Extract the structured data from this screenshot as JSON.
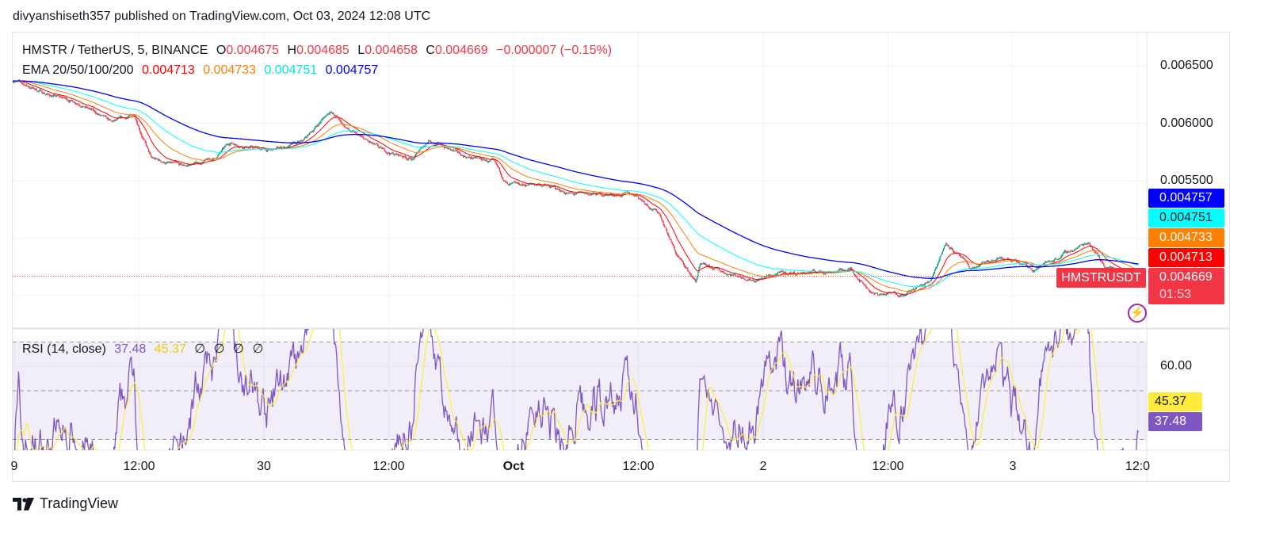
{
  "published": "divyanshiseth357 published on TradingView.com, Oct 03, 2024 12:08 UTC",
  "legend": {
    "symbol": "HMSTR / TetherUS, 5, BINANCE",
    "o_label": "O",
    "o": "0.004675",
    "h_label": "H",
    "h": "0.004685",
    "l_label": "L",
    "l": "0.004658",
    "c_label": "C",
    "c": "0.004669",
    "change": "−0.000007 (−0.15%)",
    "ema_label": "EMA 20/50/100/200",
    "ema20": "0.004713",
    "ema50": "0.004733",
    "ema100": "0.004751",
    "ema200": "0.004757"
  },
  "rsi_legend": {
    "label": "RSI (14, close)",
    "rsi": "37.48",
    "ma": "45.37",
    "na_symbols": [
      "∅",
      "∅",
      "∅",
      "∅"
    ]
  },
  "price_tags": {
    "ema200": "0.004757",
    "ema100": "0.004751",
    "ema50": "0.004733",
    "ema20": "0.004713",
    "last": "0.004669",
    "countdown": "01:53",
    "symbol_tag": "HMSTRUSDT"
  },
  "rsi_tags": {
    "ma": "45.37",
    "rsi": "37.48"
  },
  "footer": {
    "brand": "TradingView"
  },
  "colors": {
    "up": "#089981",
    "down": "#f23645",
    "ema20": "#ff0000",
    "ema50": "#ff8000",
    "ema100": "#00ffff",
    "ema200": "#0000ff",
    "rsi": "#7e57c2",
    "rsi_ma": "#ffeb3b",
    "last": "#f23645"
  },
  "chart_data": [
    {
      "type": "candlestick",
      "title": "HMSTR / TetherUS, 5, BINANCE",
      "interval": "5m",
      "ylim": [
        0.00425,
        0.00655
      ],
      "y_ticks": [
        "0.006500",
        "0.006000",
        "0.005500"
      ],
      "y_tick_values": [
        0.0065,
        0.006,
        0.0055
      ],
      "x_ticks": [
        {
          "label": "9",
          "time": "2024-09-29 00:00"
        },
        {
          "label": "12:00",
          "time": "2024-09-29 12:00"
        },
        {
          "label": "30",
          "time": "2024-09-30 00:00"
        },
        {
          "label": "12:00",
          "time": "2024-09-30 12:00"
        },
        {
          "label": "Oct",
          "time": "2024-10-01 00:00",
          "bold": true
        },
        {
          "label": "12:00",
          "time": "2024-10-01 12:00"
        },
        {
          "label": "2",
          "time": "2024-10-02 00:00"
        },
        {
          "label": "12:00",
          "time": "2024-10-02 12:00"
        },
        {
          "label": "3",
          "time": "2024-10-03 00:00"
        },
        {
          "label": "12:0",
          "time": "2024-10-03 12:00"
        }
      ],
      "approx_close_path": [
        [
          "2024-09-28 23:45",
          0.00638
        ],
        [
          "2024-09-29 03:15",
          0.00625
        ],
        [
          "2024-09-29 06:15",
          0.00618
        ],
        [
          "2024-09-29 09:20",
          0.006
        ],
        [
          "2024-09-29 11:35",
          0.00607
        ],
        [
          "2024-09-29 13:10",
          0.00569
        ],
        [
          "2024-09-29 16:10",
          0.00562
        ],
        [
          "2024-09-29 19:15",
          0.00569
        ],
        [
          "2024-09-29 20:45",
          0.00583
        ],
        [
          "2024-09-30 00:35",
          0.00576
        ],
        [
          "2024-09-30 03:40",
          0.00583
        ],
        [
          "2024-09-30 06:20",
          0.00611
        ],
        [
          "2024-09-30 08:15",
          0.00593
        ],
        [
          "2024-09-30 11:20",
          0.00576
        ],
        [
          "2024-09-30 14:20",
          0.00569
        ],
        [
          "2024-09-30 15:55",
          0.00586
        ],
        [
          "2024-09-30 18:55",
          0.00572
        ],
        [
          "2024-09-30 22:00",
          0.00566
        ],
        [
          "2024-09-30 23:30",
          0.00545
        ],
        [
          "2024-10-01 02:35",
          0.00547
        ],
        [
          "2024-10-01 05:40",
          0.00538
        ],
        [
          "2024-10-01 08:40",
          0.00538
        ],
        [
          "2024-10-01 11:45",
          0.00538
        ],
        [
          "2024-10-01 14:05",
          0.00521
        ],
        [
          "2024-10-01 15:35",
          0.00487
        ],
        [
          "2024-10-01 17:30",
          0.00462
        ],
        [
          "2024-10-01 17:55",
          0.00476
        ],
        [
          "2024-10-01 20:55",
          0.00469
        ],
        [
          "2024-10-01 23:15",
          0.00464
        ],
        [
          "2024-10-02 01:30",
          0.00469
        ],
        [
          "2024-10-02 06:05",
          0.00471
        ],
        [
          "2024-10-02 08:25",
          0.00473
        ],
        [
          "2024-10-02 10:40",
          0.00451
        ],
        [
          "2024-10-02 13:45",
          0.00452
        ],
        [
          "2024-10-02 16:00",
          0.00462
        ],
        [
          "2024-10-02 17:35",
          0.00497
        ],
        [
          "2024-10-02 19:55",
          0.00473
        ],
        [
          "2024-10-02 22:55",
          0.00483
        ],
        [
          "2024-10-03 01:55",
          0.00473
        ],
        [
          "2024-10-03 04:15",
          0.00483
        ],
        [
          "2024-10-03 07:20",
          0.00497
        ],
        [
          "2024-10-03 08:50",
          0.00476
        ],
        [
          "2024-10-03 12:05",
          0.004669
        ]
      ],
      "series": [
        {
          "name": "EMA 20",
          "period": 20,
          "last": 0.004713
        },
        {
          "name": "EMA 50",
          "period": 50,
          "last": 0.004733
        },
        {
          "name": "EMA 100",
          "period": 100,
          "last": 0.004751
        },
        {
          "name": "EMA 200",
          "period": 200,
          "last": 0.004757
        }
      ],
      "last_price": 0.004669
    },
    {
      "type": "line",
      "title": "RSI (14, close)",
      "ylim": [
        25.6,
        75.4
      ],
      "bands": [
        70,
        50,
        30
      ],
      "y_ticks": [
        "60.00"
      ],
      "y_tick_values": [
        60
      ],
      "series": [
        {
          "name": "RSI",
          "last": 37.48
        },
        {
          "name": "RSI MA",
          "last": 45.37
        }
      ]
    }
  ]
}
